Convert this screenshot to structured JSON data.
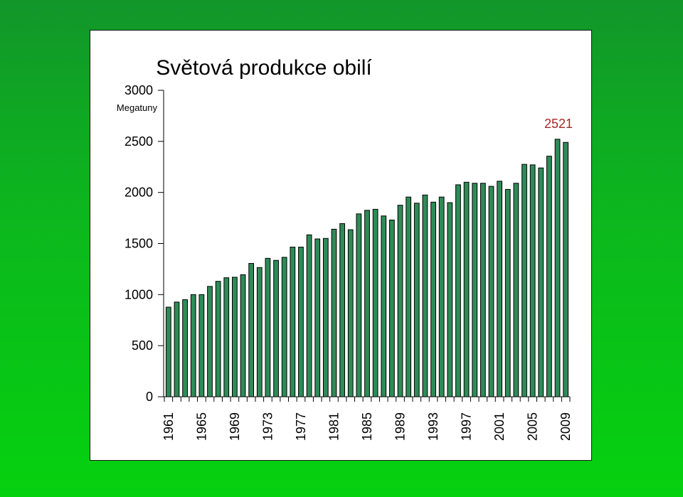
{
  "chart_data": {
    "type": "bar",
    "title": "Světová produkce obilí",
    "ylabel": "Megatuny",
    "ylim": [
      0,
      3000
    ],
    "yticks": [
      "0",
      "500",
      "1000",
      "1500",
      "2000",
      "2500",
      "3000"
    ],
    "xtick_labels": [
      "1961",
      "1965",
      "1969",
      "1973",
      "1977",
      "1981",
      "1985",
      "1989",
      "1993",
      "1997",
      "2001",
      "2005",
      "2009"
    ],
    "annotation": "2521",
    "bar_color": "#2e8b57",
    "categories": [
      1961,
      1962,
      1963,
      1964,
      1965,
      1966,
      1967,
      1968,
      1969,
      1970,
      1971,
      1972,
      1973,
      1974,
      1975,
      1976,
      1977,
      1978,
      1979,
      1980,
      1981,
      1982,
      1983,
      1984,
      1985,
      1986,
      1987,
      1988,
      1989,
      1990,
      1991,
      1992,
      1993,
      1994,
      1995,
      1996,
      1997,
      1998,
      1999,
      2000,
      2001,
      2002,
      2003,
      2004,
      2005,
      2006,
      2007,
      2008,
      2009
    ],
    "values": [
      877,
      927,
      950,
      1000,
      1000,
      1080,
      1130,
      1165,
      1170,
      1195,
      1305,
      1265,
      1355,
      1335,
      1365,
      1465,
      1465,
      1585,
      1545,
      1550,
      1640,
      1695,
      1635,
      1790,
      1825,
      1835,
      1770,
      1730,
      1875,
      1955,
      1895,
      1975,
      1905,
      1955,
      1900,
      2075,
      2100,
      2090,
      2090,
      2060,
      2110,
      2030,
      2090,
      2275,
      2270,
      2240,
      2355,
      2521,
      2490
    ]
  }
}
